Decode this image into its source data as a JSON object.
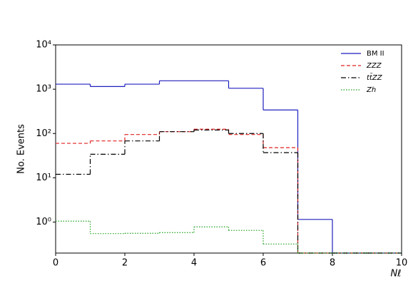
{
  "chart_data": {
    "type": "histogram",
    "x_label": "Nℓ",
    "y_label": "No. Events",
    "bins": [
      0,
      1,
      2,
      3,
      4,
      5,
      6,
      7,
      8,
      9,
      10
    ],
    "xlim": [
      0,
      10
    ],
    "xticks": [
      0,
      2,
      4,
      6,
      8,
      10
    ],
    "ylim": [
      0.2,
      10000
    ],
    "log_y": true,
    "yticks": [
      {
        "value": 1,
        "label": "10⁰"
      },
      {
        "value": 10,
        "label": "10¹"
      },
      {
        "value": 100,
        "label": "10²"
      },
      {
        "value": 1000,
        "label": "10³"
      },
      {
        "value": 10000,
        "label": "10⁴"
      }
    ],
    "legend": "upper right",
    "series": [
      {
        "name": "BM II",
        "color": "#1f1fbf",
        "linestyle": "solid",
        "values": [
          1300,
          1150,
          1300,
          1550,
          1550,
          1050,
          340,
          1.15,
          0,
          0
        ]
      },
      {
        "name": "ZZZ",
        "color": "#e02020",
        "linestyle": "dashed",
        "values": [
          60,
          68,
          95,
          110,
          125,
          95,
          48,
          0,
          0,
          0
        ]
      },
      {
        "name": "tt̄ZZ",
        "color": "#000000",
        "linestyle": "dashdot",
        "values": [
          12,
          34,
          68,
          110,
          120,
          100,
          37,
          0,
          0,
          0
        ]
      },
      {
        "name": "Zh",
        "color": "#20a020",
        "linestyle": "dotted",
        "values": [
          1.05,
          0.55,
          0.56,
          0.58,
          0.78,
          0.65,
          0.32,
          0,
          0,
          0
        ]
      }
    ]
  }
}
